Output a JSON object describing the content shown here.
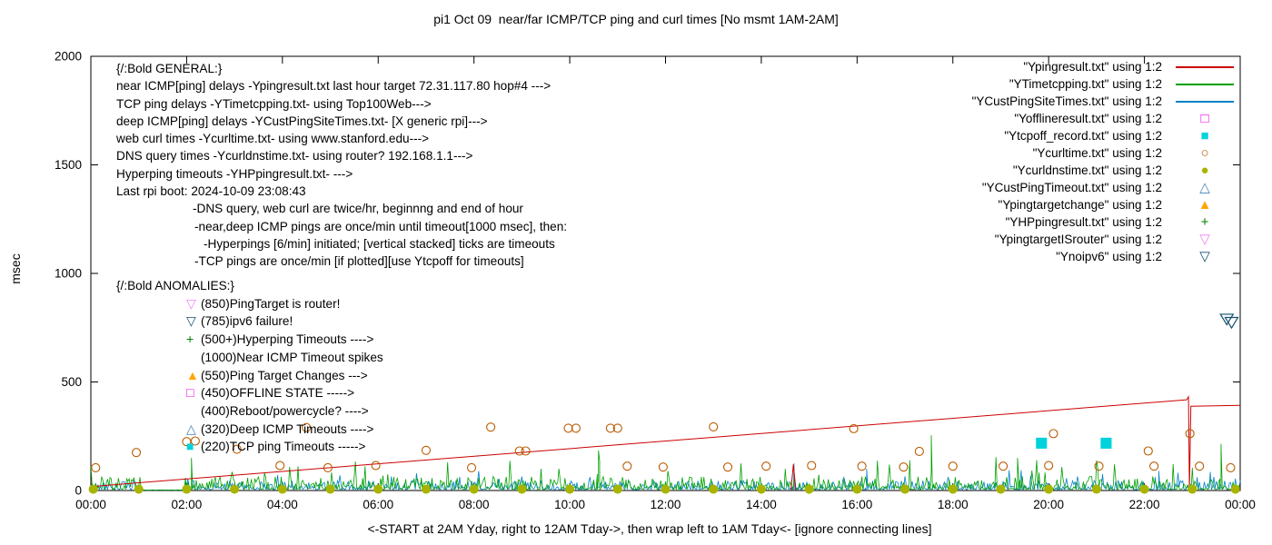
{
  "title": "pi1 Oct 09  near/far ICMP/TCP ping and curl times [No msmt 1AM-2AM]",
  "ylabel": "msec",
  "xlabel": "<-START at 2AM Yday, right to 12AM Tday->, then wrap left to 1AM Tday<- [ignore connecting lines]",
  "axes": {
    "yticks": [
      0,
      500,
      1000,
      1500,
      2000
    ],
    "xticks": [
      "00:00",
      "02:00",
      "04:00",
      "06:00",
      "08:00",
      "10:00",
      "12:00",
      "14:00",
      "16:00",
      "18:00",
      "20:00",
      "22:00",
      "00:00"
    ],
    "xrange_hours": [
      0,
      24
    ],
    "yrange_msec": [
      0,
      2000
    ]
  },
  "legend": [
    {
      "label": "\"Ypingresult.txt\" using 1:2",
      "sample": "line",
      "color": "#cc0000"
    },
    {
      "label": "\"YTimetcpping.txt\" using 1:2",
      "sample": "line",
      "color": "#00a000"
    },
    {
      "label": "\"YCustPingSiteTimes.txt\" using 1:2",
      "sample": "line",
      "color": "#0080c8"
    },
    {
      "label": "\"Yofflineresult.txt\" using 1:2",
      "sample": "glyph",
      "glyph": "□",
      "color": "#e800e8"
    },
    {
      "label": "\"Ytcpoff_record.txt\" using 1:2",
      "sample": "glyph",
      "glyph": "■",
      "color": "#00d2dc"
    },
    {
      "label": "\"Ycurltime.txt\" using 1:2",
      "sample": "glyph",
      "glyph": "○",
      "color": "#b85c00"
    },
    {
      "label": "\"Ycurldnstime.txt\" using 1:2",
      "sample": "glyph",
      "glyph": "●",
      "color": "#a8b400"
    },
    {
      "label": "\"YCustPingTimeout.txt\" using 1:2",
      "sample": "glyph",
      "glyph": "△",
      "color": "#4682b4"
    },
    {
      "label": "\"Ypingtargetchange\" using 1:2",
      "sample": "glyph",
      "glyph": "▲",
      "color": "#ffa500"
    },
    {
      "label": "\"YHPpingresult.txt\" using 1:2",
      "sample": "glyph",
      "glyph": "+",
      "color": "#008000"
    },
    {
      "label": "\"YpingtargetISrouter\" using 1:2",
      "sample": "glyph",
      "glyph": "▽",
      "color": "#ee82ee"
    },
    {
      "label": "\"Ynoipv6\" using 1:2",
      "sample": "glyph",
      "glyph": "▽",
      "color": "#14506e"
    }
  ],
  "annotations": {
    "general": [
      {
        "text": "{/:Bold GENERAL:}",
        "indent": 0
      },
      {
        "text": "near ICMP[ping] delays -Ypingresult.txt last hour target 72.31.117.80 hop#4 --->",
        "indent": 0
      },
      {
        "text": "TCP ping delays -YTimetcpping.txt- using Top100Web--->",
        "indent": 0
      },
      {
        "text": "deep ICMP[ping] delays -YCustPingSiteTimes.txt- [X generic rpi]--->",
        "indent": 0
      },
      {
        "text": "web curl times -Ycurltime.txt- using www.stanford.edu--->",
        "indent": 0
      },
      {
        "text": "DNS query times -Ycurldnstime.txt- using router? 192.168.1.1--->",
        "indent": 0
      },
      {
        "text": "Hyperping timeouts -YHPpingresult.txt- --->",
        "indent": 0
      },
      {
        "text": "Last rpi boot: 2024-10-09 23:08:43",
        "indent": 0
      },
      {
        "text": "-DNS query, web curl are twice/hr, beginnng and end of hour",
        "indent": 84
      },
      {
        "text": "-near,deep ICMP pings are once/min until timeout[1000 msec], then:",
        "indent": 86
      },
      {
        "text": "-Hyperpings [6/min] initiated; [vertical stacked] ticks are timeouts",
        "indent": 96
      },
      {
        "text": "-TCP pings are once/min [if plotted][use Ytcpoff for timeouts]",
        "indent": 86
      }
    ],
    "anomalies_header": "{/:Bold ANOMALIES:}",
    "anomalies": [
      {
        "glyph": "▽",
        "color": "#ee82ee",
        "text": "(850)PingTarget is router!"
      },
      {
        "glyph": "▽",
        "color": "#14506e",
        "text": "(785)ipv6 failure!"
      },
      {
        "glyph": "+",
        "color": "#008000",
        "text": "(500+)Hyperping Timeouts ---->"
      },
      {
        "glyph": "",
        "color": "",
        "text": "(1000)Near ICMP Timeout spikes"
      },
      {
        "glyph": "▲",
        "color": "#ffa500",
        "text": "(550)Ping Target Changes --->"
      },
      {
        "glyph": "□",
        "color": "#e800e8",
        "text": "(450)OFFLINE STATE ----->"
      },
      {
        "glyph": "",
        "color": "",
        "text": "(400)Reboot/powercycle? ---->"
      },
      {
        "glyph": "△",
        "color": "#4682b4",
        "text": "(320)Deep ICMP Timeouts ---->"
      },
      {
        "glyph": "■",
        "color": "#00d2dc",
        "text": "(220)TCP ping Timeouts ----->"
      }
    ]
  },
  "chart_data": {
    "type": "line",
    "x_unit": "hours_00_to_24",
    "y_unit": "msec",
    "title": "pi1 Oct 09  near/far ICMP/TCP ping and curl times [No msmt 1AM-2AM]",
    "ylim": [
      0,
      2000
    ],
    "series": [
      {
        "name": "YCustPingSiteTimes.txt",
        "type": "noise",
        "color": "#0080c8",
        "seed": 42,
        "points_per_hour": 40,
        "base": 4,
        "amp": 42,
        "spike_chance": 0.05,
        "spike_amp": 70,
        "tall_spikes": [
          [
            14.68,
            125
          ],
          [
            16.2,
            100
          ],
          [
            22.3,
            90
          ]
        ]
      },
      {
        "name": "YTimetcpping.txt",
        "type": "noise",
        "color": "#00a000",
        "seed": 7,
        "points_per_hour": 40,
        "base": 5,
        "amp": 60,
        "spike_chance": 0.07,
        "spike_amp": 110,
        "tall_spikes": [
          [
            2.1,
            150
          ],
          [
            10.6,
            185
          ],
          [
            17.55,
            255
          ],
          [
            19.35,
            150
          ],
          [
            23.6,
            215
          ]
        ]
      },
      {
        "name": "Ypingresult.txt",
        "type": "line",
        "color": "#cc0000",
        "width": 1,
        "segments": [
          [
            [
              0,
              18
            ],
            [
              22.88,
              418
            ],
            [
              22.92,
              432
            ],
            [
              22.94,
              2
            ],
            [
              22.97,
              388
            ],
            [
              24,
              392
            ]
          ],
          [
            [
              14.62,
              3
            ],
            [
              14.67,
              120
            ],
            [
              14.72,
              3
            ]
          ]
        ]
      },
      {
        "name": "Ycurltime.txt",
        "type": "scatter",
        "marker": "circle",
        "filled": false,
        "color": "#b85c00",
        "size": 4.5,
        "points": [
          [
            0.1,
            105
          ],
          [
            0.95,
            175
          ],
          [
            2.0,
            225
          ],
          [
            2.18,
            228
          ],
          [
            3.05,
            190
          ],
          [
            3.95,
            115
          ],
          [
            4.5,
            290
          ],
          [
            4.95,
            105
          ],
          [
            5.95,
            115
          ],
          [
            7.0,
            185
          ],
          [
            7.95,
            105
          ],
          [
            8.35,
            292
          ],
          [
            8.95,
            182
          ],
          [
            9.08,
            182
          ],
          [
            9.97,
            287
          ],
          [
            10.13,
            287
          ],
          [
            10.85,
            287
          ],
          [
            11.0,
            287
          ],
          [
            11.2,
            112
          ],
          [
            11.95,
            108
          ],
          [
            13.0,
            293
          ],
          [
            13.3,
            108
          ],
          [
            14.1,
            112
          ],
          [
            15.05,
            115
          ],
          [
            15.93,
            285
          ],
          [
            16.1,
            112
          ],
          [
            16.97,
            108
          ],
          [
            17.3,
            180
          ],
          [
            18.0,
            112
          ],
          [
            19.05,
            112
          ],
          [
            20.0,
            115
          ],
          [
            20.1,
            262
          ],
          [
            21.05,
            112
          ],
          [
            22.08,
            182
          ],
          [
            22.2,
            112
          ],
          [
            22.95,
            262
          ],
          [
            23.15,
            112
          ],
          [
            23.8,
            105
          ]
        ]
      },
      {
        "name": "Ycurldnstime.txt",
        "type": "scatter",
        "marker": "circle",
        "filled": true,
        "color": "#a8b400",
        "size": 4.5,
        "points": [
          [
            0.05,
            6
          ],
          [
            1,
            6
          ],
          [
            2,
            6
          ],
          [
            3,
            6
          ],
          [
            4,
            6
          ],
          [
            5,
            6
          ],
          [
            6,
            6
          ],
          [
            7,
            6
          ],
          [
            8,
            6
          ],
          [
            9,
            6
          ],
          [
            10,
            6
          ],
          [
            11,
            6
          ],
          [
            12,
            6
          ],
          [
            13,
            6
          ],
          [
            14,
            6
          ],
          [
            15,
            6
          ],
          [
            16,
            6
          ],
          [
            17,
            6
          ],
          [
            18,
            6
          ],
          [
            19,
            6
          ],
          [
            20,
            6
          ],
          [
            21,
            6
          ],
          [
            22,
            6
          ],
          [
            23,
            6
          ],
          [
            23.9,
            6
          ]
        ]
      },
      {
        "name": "Ytcpoff_record.txt",
        "type": "scatter",
        "marker": "square",
        "filled": true,
        "color": "#00d2dc",
        "size": 5.5,
        "points": [
          [
            19.85,
            218
          ],
          [
            21.2,
            218
          ]
        ]
      },
      {
        "name": "Ynoipv6",
        "type": "scatter",
        "marker": "triangle-down",
        "filled": false,
        "color": "#14506e",
        "size": 7,
        "points": [
          [
            23.72,
            790
          ],
          [
            23.82,
            775
          ]
        ]
      }
    ]
  }
}
